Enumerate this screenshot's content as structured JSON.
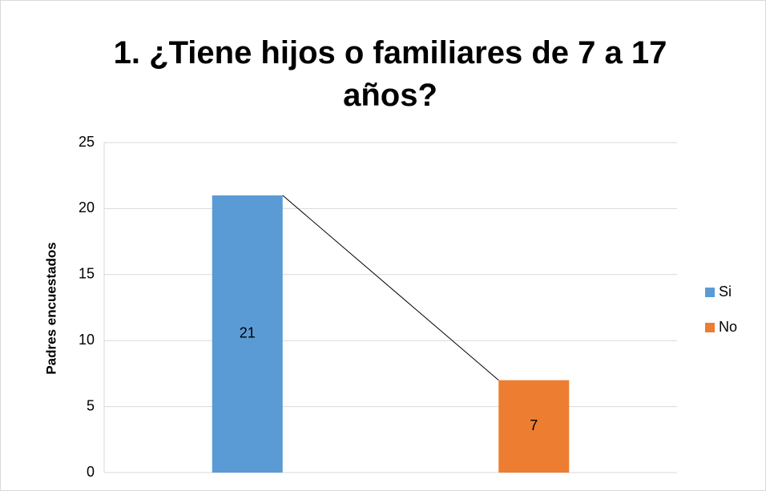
{
  "chart_data": {
    "type": "bar",
    "stacked": true,
    "series_lines": true,
    "title": "1. ¿Tiene hijos o familiares de 7 a 17 años?",
    "y_label": "Padres encuestados",
    "categories": [
      null,
      null
    ],
    "series": [
      {
        "name": "Si",
        "color": "#5b9bd5",
        "values": [
          21,
          null
        ]
      },
      {
        "name": "No",
        "color": "#ed7d31",
        "values": [
          null,
          7
        ]
      }
    ],
    "data_labels": true,
    "ylim": [
      0,
      25
    ],
    "yticks": [
      0,
      5,
      10,
      15,
      20,
      25
    ],
    "grid": true,
    "legend": "right"
  }
}
